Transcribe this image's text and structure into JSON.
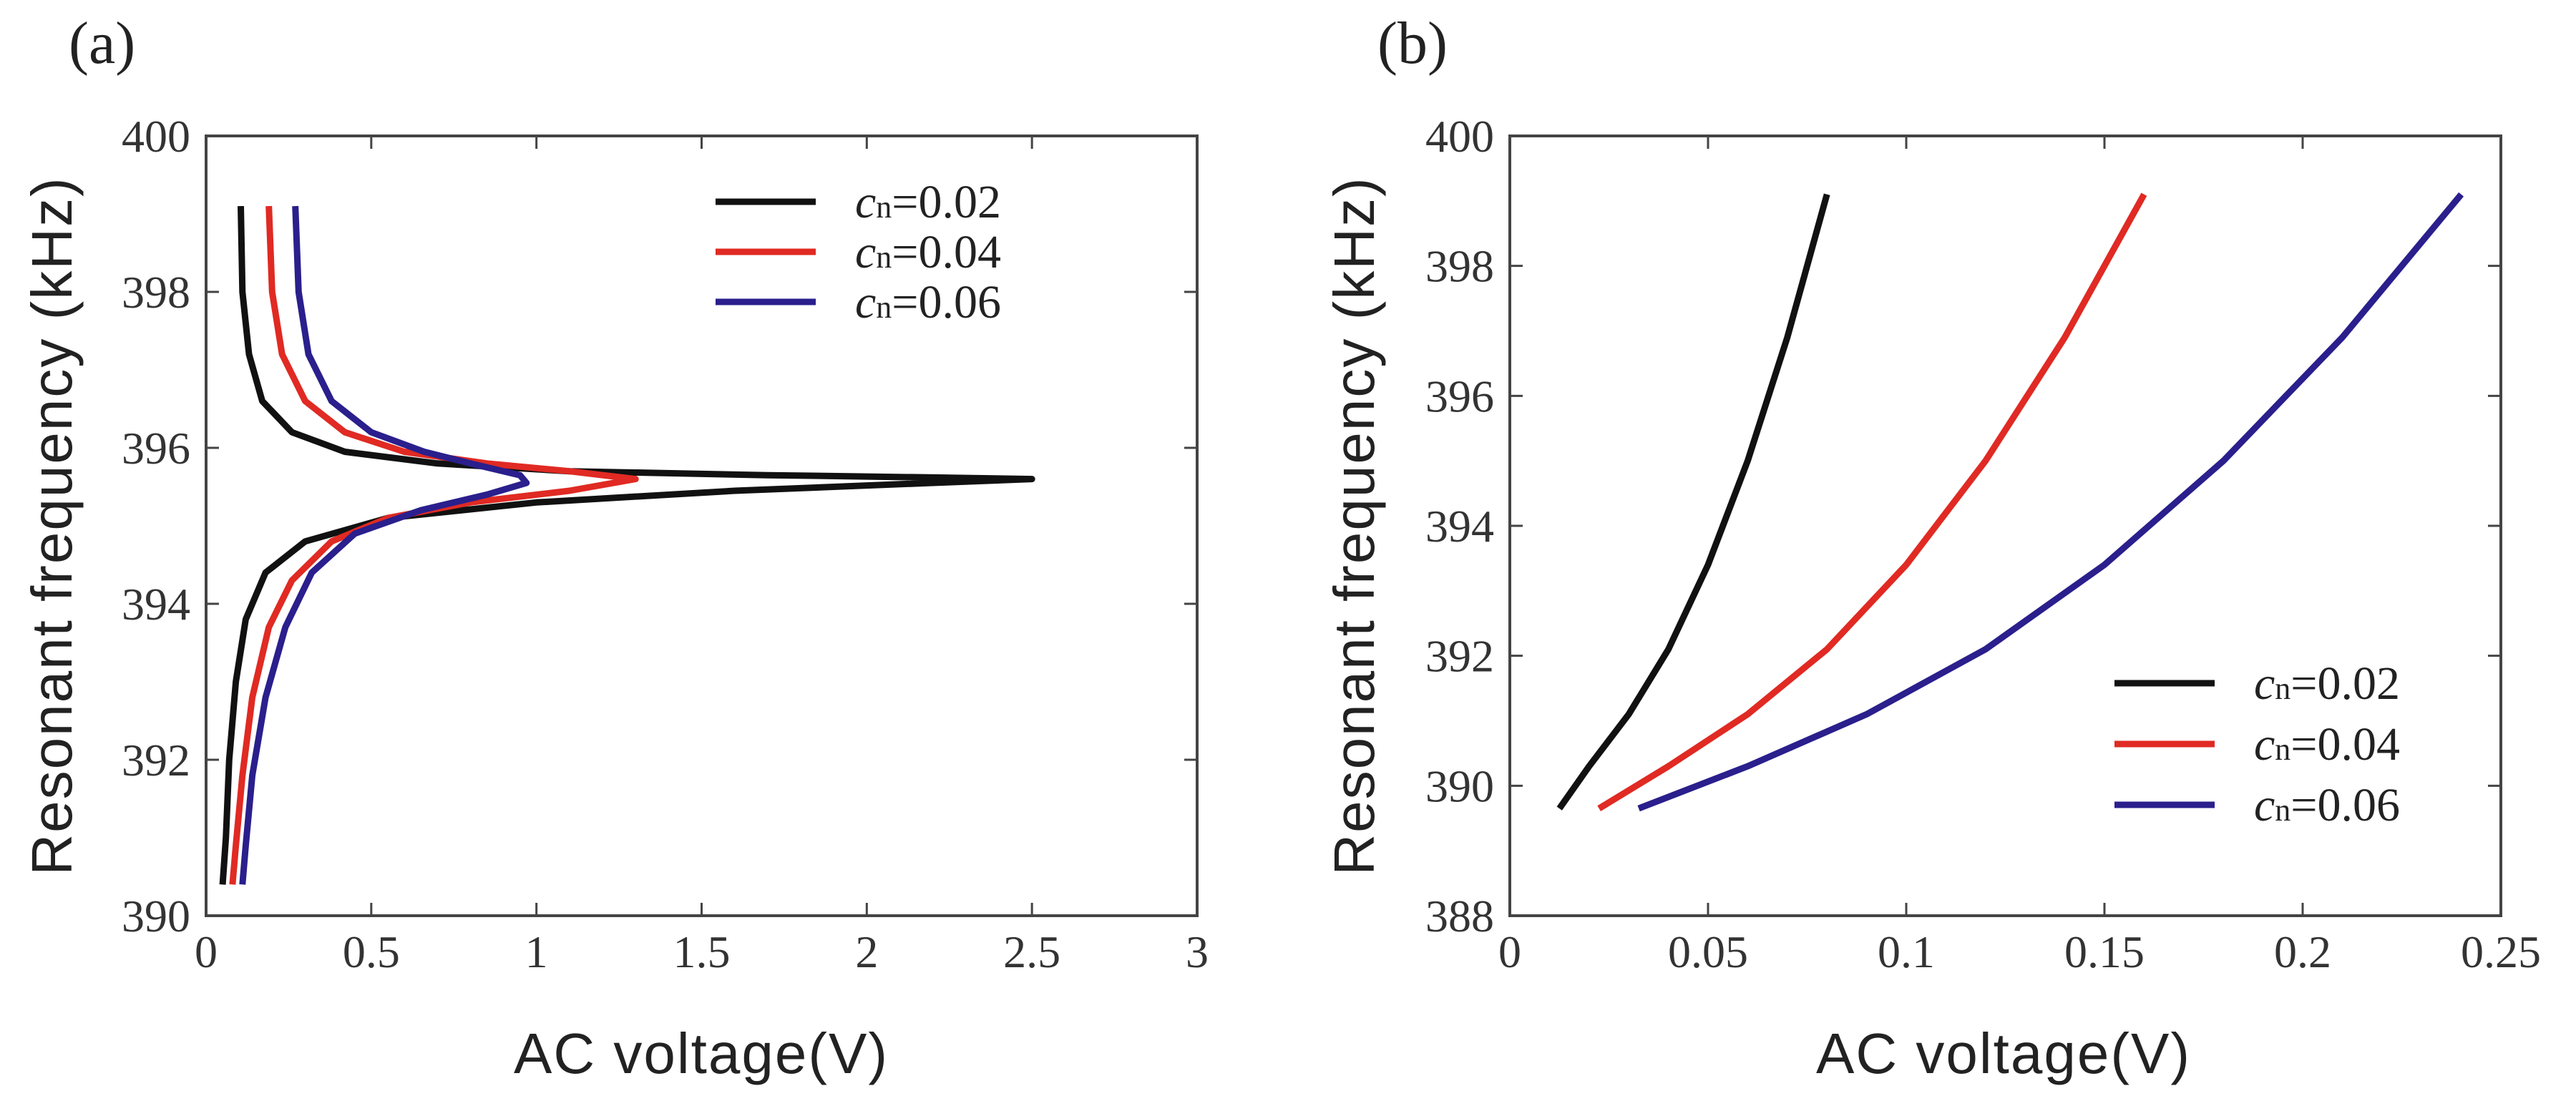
{
  "chart_data": [
    {
      "panel": "(a)",
      "type": "line",
      "xlabel": "AC voltage(V)",
      "ylabel": "Resonant frequency (kHz)",
      "xlim": [
        0,
        3
      ],
      "ylim": [
        390,
        400
      ],
      "xticks": [
        0,
        0.5,
        1,
        1.5,
        2,
        2.5,
        3
      ],
      "xtick_labels": [
        "0",
        "0.5",
        "1",
        "1.5",
        "2",
        "2.5",
        "3"
      ],
      "yticks": [
        390,
        392,
        394,
        396,
        398,
        400
      ],
      "ytick_labels": [
        "390",
        "392",
        "394",
        "396",
        "398",
        "400"
      ],
      "legend_position": "top-right",
      "series": [
        {
          "name_symbol": "c",
          "name_sub": "n",
          "name_value": "=0.02",
          "color": "#111111",
          "x": [
            0.105,
            0.11,
            0.13,
            0.17,
            0.26,
            0.42,
            0.7,
            1.1,
            1.7,
            2.2,
            2.5,
            2.2,
            1.6,
            1.0,
            0.55,
            0.3,
            0.18,
            0.12,
            0.09,
            0.07,
            0.06,
            0.05
          ],
          "y": [
            399.1,
            398.0,
            397.2,
            396.6,
            396.2,
            395.95,
            395.8,
            395.7,
            395.65,
            395.62,
            395.6,
            395.55,
            395.45,
            395.3,
            395.1,
            394.8,
            394.4,
            393.8,
            393.0,
            392.0,
            391.0,
            390.4
          ]
        },
        {
          "name_symbol": "c",
          "name_sub": "n",
          "name_value": "=0.04",
          "color": "#e02a23",
          "x": [
            0.19,
            0.2,
            0.23,
            0.3,
            0.42,
            0.6,
            0.85,
            1.1,
            1.3,
            1.1,
            0.8,
            0.55,
            0.38,
            0.26,
            0.19,
            0.14,
            0.11,
            0.09,
            0.08
          ],
          "y": [
            399.1,
            398.0,
            397.2,
            396.6,
            396.2,
            395.95,
            395.8,
            395.7,
            395.6,
            395.45,
            395.3,
            395.1,
            394.8,
            394.3,
            393.7,
            392.8,
            391.8,
            390.9,
            390.4
          ]
        },
        {
          "name_symbol": "c",
          "name_sub": "n",
          "name_value": "=0.06",
          "color": "#2a1f8c",
          "x": [
            0.27,
            0.28,
            0.31,
            0.38,
            0.5,
            0.66,
            0.82,
            0.95,
            0.97,
            0.85,
            0.65,
            0.45,
            0.32,
            0.24,
            0.18,
            0.14,
            0.12,
            0.11
          ],
          "y": [
            399.1,
            398.0,
            397.2,
            396.6,
            396.2,
            395.95,
            395.78,
            395.65,
            395.55,
            395.4,
            395.2,
            394.9,
            394.4,
            393.7,
            392.8,
            391.8,
            390.9,
            390.4
          ]
        }
      ]
    },
    {
      "panel": "(b)",
      "type": "line",
      "xlabel": "AC voltage(V)",
      "ylabel": "Resonant frequency (kHz)",
      "xlim": [
        0,
        0.25
      ],
      "ylim": [
        388,
        400
      ],
      "xticks": [
        0,
        0.05,
        0.1,
        0.15,
        0.2,
        0.25
      ],
      "xtick_labels": [
        "0",
        "0.05",
        "0.1",
        "0.15",
        "0.2",
        "0.25"
      ],
      "yticks": [
        388,
        390,
        392,
        394,
        396,
        398,
        400
      ],
      "ytick_labels": [
        "388",
        "390",
        "392",
        "394",
        "396",
        "398",
        "400"
      ],
      "legend_position": "bottom-right",
      "series": [
        {
          "name_symbol": "c",
          "name_sub": "n",
          "name_value": "=0.02",
          "color": "#111111",
          "x": [
            0.0125,
            0.02,
            0.03,
            0.04,
            0.05,
            0.06,
            0.07,
            0.08
          ],
          "y": [
            389.65,
            390.3,
            391.1,
            392.1,
            393.4,
            395.0,
            396.9,
            399.1
          ]
        },
        {
          "name_symbol": "c",
          "name_sub": "n",
          "name_value": "=0.04",
          "color": "#e02a23",
          "x": [
            0.0225,
            0.04,
            0.06,
            0.08,
            0.1,
            0.12,
            0.14,
            0.16
          ],
          "y": [
            389.65,
            390.3,
            391.1,
            392.1,
            393.4,
            395.0,
            396.9,
            399.1
          ]
        },
        {
          "name_symbol": "c",
          "name_sub": "n",
          "name_value": "=0.06",
          "color": "#2a1f8c",
          "x": [
            0.0325,
            0.06,
            0.09,
            0.12,
            0.15,
            0.18,
            0.21,
            0.24
          ],
          "y": [
            389.65,
            390.3,
            391.1,
            392.1,
            393.4,
            395.0,
            396.9,
            399.1
          ]
        }
      ]
    }
  ]
}
